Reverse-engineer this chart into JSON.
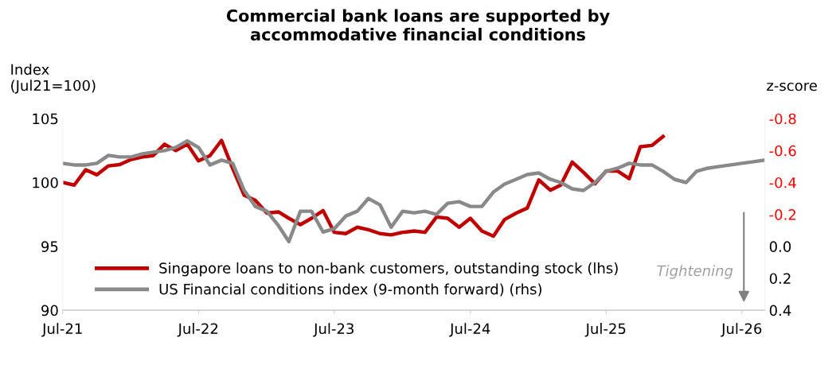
{
  "chart_data": {
    "type": "line",
    "title": "Commercial bank loans are supported by\naccommodative financial conditions",
    "ylabel": "Index\n(Jul21=100)",
    "y2label": "z-score",
    "series": [
      {
        "name": "Singapore loans to non-bank customers, outstanding stock (lhs)",
        "color": "#c00000",
        "x": [
          "2021-07",
          "2021-08",
          "2021-09",
          "2021-10",
          "2021-11",
          "2021-12",
          "2022-01",
          "2022-02",
          "2022-03",
          "2022-04",
          "2022-05",
          "2022-06",
          "2022-07",
          "2022-08",
          "2022-09",
          "2022-10",
          "2022-11",
          "2022-12",
          "2023-01",
          "2023-02",
          "2023-03",
          "2023-04",
          "2023-05",
          "2023-06",
          "2023-07",
          "2023-08",
          "2023-09",
          "2023-10",
          "2023-11",
          "2023-12",
          "2024-01",
          "2024-02",
          "2024-03",
          "2024-04",
          "2024-05",
          "2024-06",
          "2024-07",
          "2024-08",
          "2024-09",
          "2024-10",
          "2024-11",
          "2024-12",
          "2025-01",
          "2025-02",
          "2025-03",
          "2025-04",
          "2025-05",
          "2025-06",
          "2025-07",
          "2025-08",
          "2025-09",
          "2025-10",
          "2025-11",
          "2025-12"
        ],
        "values": [
          100.0,
          99.8,
          101.0,
          100.6,
          101.3,
          101.4,
          101.8,
          102.0,
          102.1,
          103.0,
          102.5,
          103.0,
          101.7,
          102.1,
          103.3,
          101.1,
          99.0,
          98.6,
          97.6,
          97.7,
          97.2,
          96.7,
          97.2,
          97.8,
          96.1,
          96.0,
          96.5,
          96.3,
          96.0,
          95.9,
          96.1,
          96.2,
          96.1,
          97.3,
          97.2,
          96.5,
          97.2,
          96.2,
          95.8,
          97.1,
          97.6,
          98.0,
          100.2,
          99.4,
          99.8,
          101.6,
          100.8,
          99.9,
          100.9,
          100.9,
          100.3,
          102.8,
          102.9,
          103.6
        ]
      },
      {
        "name": "US Financial conditions index (9-month forward) (rhs)",
        "color": "#898989",
        "axis": "y2",
        "x": [
          "2021-07",
          "2021-08",
          "2021-09",
          "2021-10",
          "2021-11",
          "2021-12",
          "2022-01",
          "2022-02",
          "2022-03",
          "2022-04",
          "2022-05",
          "2022-06",
          "2022-07",
          "2022-08",
          "2022-09",
          "2022-10",
          "2022-11",
          "2022-12",
          "2023-01",
          "2023-02",
          "2023-03",
          "2023-04",
          "2023-05",
          "2023-06",
          "2023-07",
          "2023-08",
          "2023-09",
          "2023-10",
          "2023-11",
          "2023-12",
          "2024-01",
          "2024-02",
          "2024-03",
          "2024-04",
          "2024-05",
          "2024-06",
          "2024-07",
          "2024-08",
          "2024-09",
          "2024-10",
          "2024-11",
          "2024-12",
          "2025-01",
          "2025-02",
          "2025-03",
          "2025-04",
          "2025-05",
          "2025-06",
          "2025-07",
          "2025-08",
          "2025-09",
          "2025-10",
          "2025-11",
          "2025-12",
          "2026-01",
          "2026-02",
          "2026-03",
          "2026-04",
          "2026-05",
          "2026-06",
          "2026-07",
          "2026-08",
          "2026-09"
        ],
        "values": [
          -0.52,
          -0.51,
          -0.51,
          -0.52,
          -0.57,
          -0.56,
          -0.56,
          -0.58,
          -0.59,
          -0.6,
          -0.62,
          -0.66,
          -0.62,
          -0.51,
          -0.54,
          -0.52,
          -0.35,
          -0.25,
          -0.22,
          -0.13,
          -0.03,
          -0.22,
          -0.22,
          -0.09,
          -0.11,
          -0.19,
          -0.22,
          -0.3,
          -0.26,
          -0.12,
          -0.22,
          -0.21,
          -0.22,
          -0.2,
          -0.27,
          -0.28,
          -0.25,
          -0.25,
          -0.34,
          -0.39,
          -0.42,
          -0.45,
          -0.46,
          -0.42,
          -0.4,
          -0.36,
          -0.35,
          -0.4,
          -0.47,
          -0.49,
          -0.52,
          -0.51,
          -0.51,
          -0.47,
          -0.42,
          -0.4,
          -0.47,
          -0.49,
          -0.5,
          -0.51,
          -0.52,
          -0.53,
          -0.54
        ]
      }
    ],
    "xlim": [
      "2021-07",
      "2026-09"
    ],
    "xticks": [
      {
        "value": "2021-07",
        "label": "Jul-21"
      },
      {
        "value": "2022-07",
        "label": "Jul-22"
      },
      {
        "value": "2023-07",
        "label": "Jul-23"
      },
      {
        "value": "2024-07",
        "label": "Jul-24"
      },
      {
        "value": "2025-07",
        "label": "Jul-25"
      },
      {
        "value": "2026-07",
        "label": "Jul-26"
      }
    ],
    "ylim": [
      90,
      105
    ],
    "yticks": [
      90,
      95,
      100,
      105
    ],
    "y2lim": [
      0.4,
      -0.8
    ],
    "y2ticks": [
      {
        "value": -0.8,
        "label": "-0.8"
      },
      {
        "value": -0.6,
        "label": "-0.6"
      },
      {
        "value": -0.4,
        "label": "-0.4"
      },
      {
        "value": -0.2,
        "label": "-0.2"
      },
      {
        "value": 0.0,
        "label": "0.0"
      },
      {
        "value": 0.2,
        "label": "0.2"
      },
      {
        "value": 0.4,
        "label": "0.4"
      }
    ],
    "annotations": [
      "Tightening"
    ],
    "legend": "bottom left",
    "grid": false,
    "marker": "none",
    "line_style": "solid"
  }
}
